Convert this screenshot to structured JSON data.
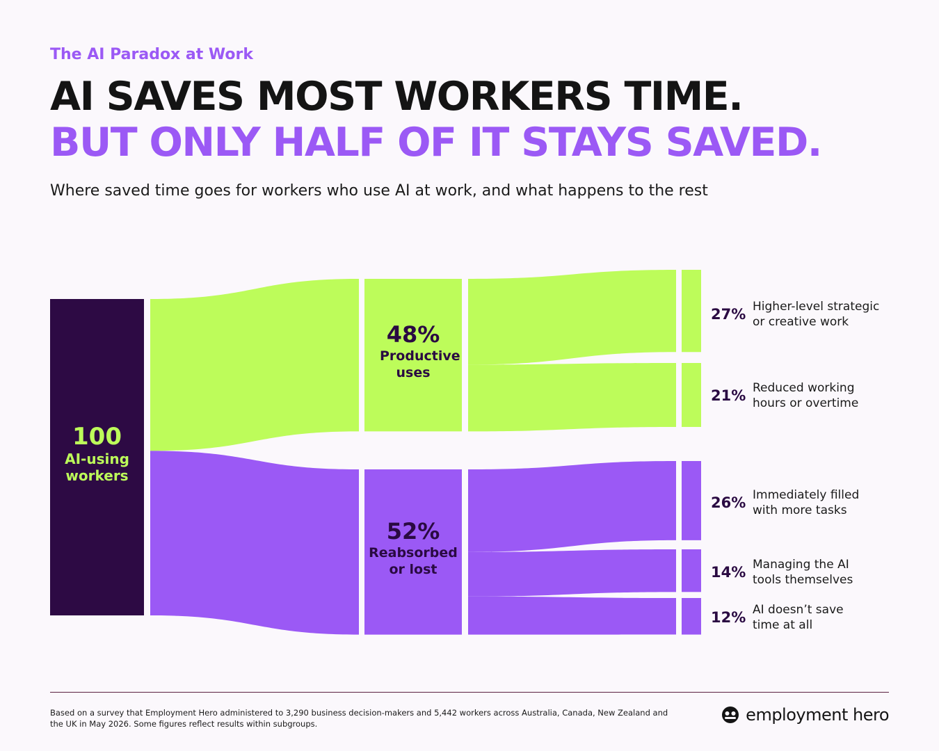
{
  "header": {
    "eyebrow": "The AI Paradox at Work",
    "headline_line1": "AI SAVES MOST WORKERS TIME.",
    "headline_line2": "BUT ONLY HALF OF IT STAYS SAVED.",
    "subtitle": "Where saved time goes for workers who use AI at work, and what happens to the rest"
  },
  "colors": {
    "source": "#2d0a44",
    "productive": "#bdfc5a",
    "reabsorbed": "#9b59f5",
    "text_dark": "#2a0a42"
  },
  "chart_data": {
    "type": "sankey",
    "source": {
      "value": "100",
      "label": "AI-using workers"
    },
    "groups": [
      {
        "value": 48,
        "pct": "48%",
        "label": "Productive uses",
        "children": [
          {
            "value": 27,
            "pct": "27%",
            "label": "Higher-level strategic or creative work"
          },
          {
            "value": 21,
            "pct": "21%",
            "label": "Reduced working hours or overtime"
          }
        ]
      },
      {
        "value": 52,
        "pct": "52%",
        "label": "Reabsorbed or lost",
        "children": [
          {
            "value": 26,
            "pct": "26%",
            "label": "Immediately filled with more tasks"
          },
          {
            "value": 14,
            "pct": "14%",
            "label": "Managing the AI tools themselves"
          },
          {
            "value": 12,
            "pct": "12%",
            "label": "AI doesn’t save time at all"
          }
        ]
      }
    ]
  },
  "labels": {
    "source_value": "100",
    "source_label": "AI-using workers",
    "g0_pct": "48%",
    "g0_label": "Productive uses",
    "g1_pct": "52%",
    "g1_label": "Reabsorbed or lost",
    "c0_pct": "27%",
    "c0_label": "Higher-level strategic or creative work",
    "c1_pct": "21%",
    "c1_label": "Reduced working hours or overtime",
    "c2_pct": "26%",
    "c2_label": "Immediately filled with more tasks",
    "c3_pct": "14%",
    "c3_label": "Managing the AI tools themselves",
    "c4_pct": "12%",
    "c4_label": "AI doesn’t save time at all"
  },
  "footer": {
    "note": "Based on a survey that Employment Hero administered to 3,290 business decision-makers and 5,442 workers across Australia, Canada, New Zealand and the UK in May 2026. Some figures reflect results within subgroups.",
    "brand": "employment hero",
    "brand_icon": "employment-hero-logo-icon"
  }
}
